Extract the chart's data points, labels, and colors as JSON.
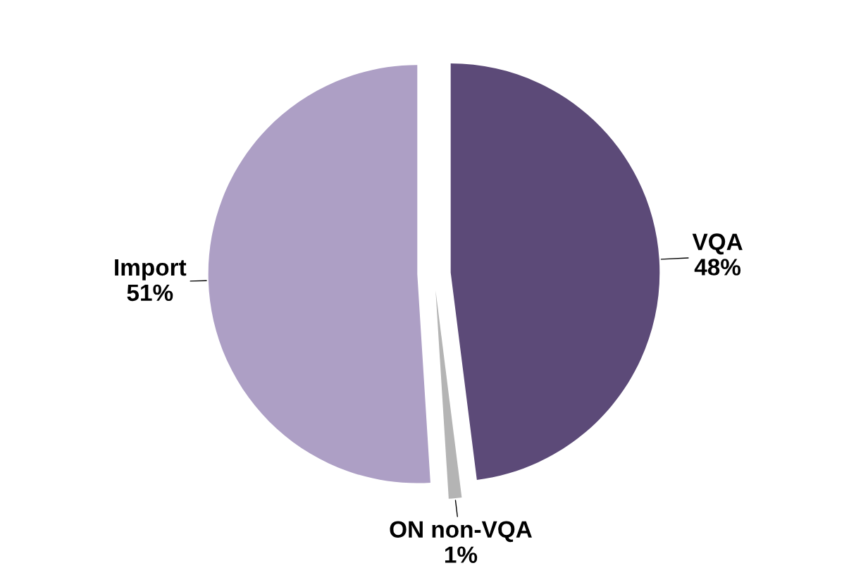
{
  "chart_data": {
    "type": "pie",
    "categories": [
      "VQA",
      "ON non-VQA",
      "Import"
    ],
    "values": [
      48,
      1,
      51
    ],
    "colors": [
      "#5c4a78",
      "#b4b4b4",
      "#ad9fc5"
    ],
    "value_labels": [
      "48%",
      "1%",
      "51%"
    ],
    "legend": false
  }
}
